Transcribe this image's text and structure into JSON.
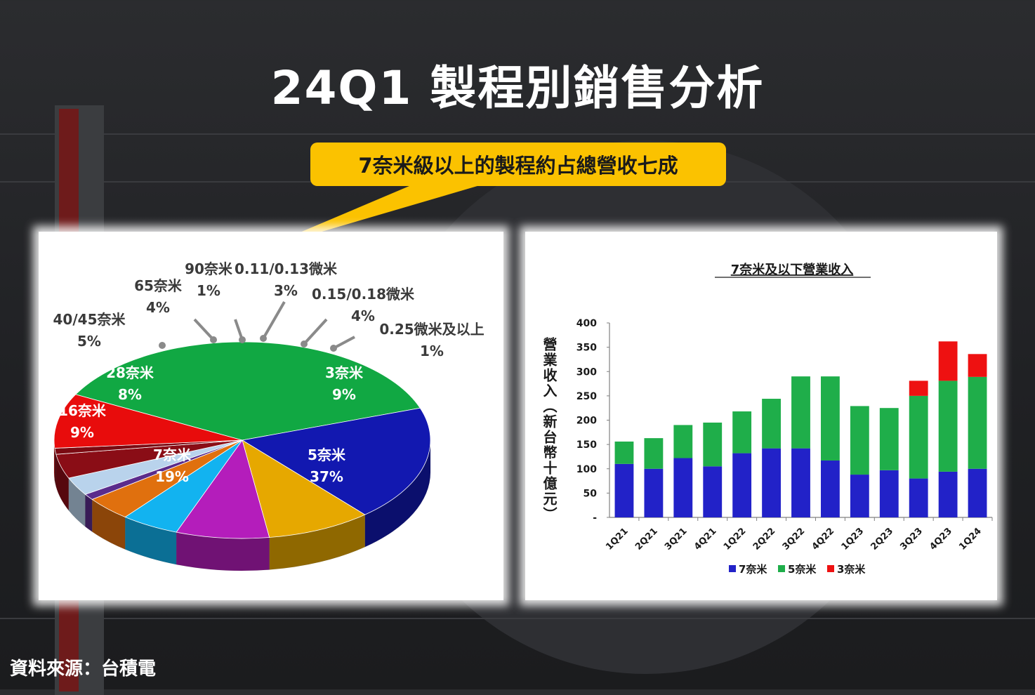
{
  "title": "24Q1 製程別銷售分析",
  "callout": "7奈米級以上的製程約占總營收七成",
  "source": "資料來源：台積電",
  "chart_data": [
    {
      "type": "pie",
      "slices": [
        {
          "name": "5奈米",
          "percent": "37%",
          "value": 37,
          "color": "#11a843"
        },
        {
          "name": "7奈米",
          "percent": "19%",
          "value": 19,
          "color": "#1218b0"
        },
        {
          "name": "16奈米",
          "percent": "9%",
          "value": 9,
          "color": "#e6a800"
        },
        {
          "name": "28奈米",
          "percent": "8%",
          "value": 8,
          "color": "#b41dbb"
        },
        {
          "name": "40/45奈米",
          "percent": "5%",
          "value": 5,
          "color": "#12b3f0"
        },
        {
          "name": "65奈米",
          "percent": "4%",
          "value": 4,
          "color": "#e0700e"
        },
        {
          "name": "90奈米",
          "percent": "1%",
          "value": 1,
          "color": "#5a2c8c"
        },
        {
          "name": "0.11/0.13微米",
          "percent": "3%",
          "value": 3,
          "color": "#b9d3ec"
        },
        {
          "name": "0.15/0.18微米",
          "percent": "4%",
          "value": 4,
          "color": "#8a0d16"
        },
        {
          "name": "0.25微米及以上",
          "percent": "1%",
          "value": 1,
          "color": "#7a0a12"
        },
        {
          "name": "3奈米",
          "percent": "9%",
          "value": 9,
          "color": "#e80c0c"
        }
      ]
    },
    {
      "type": "bar",
      "stacked": true,
      "title": "7奈米及以下營業收入",
      "ylabel": "營業收入（新台幣十億元）",
      "ylim": [
        0,
        400
      ],
      "yticks": [
        "-",
        "50",
        "100",
        "150",
        "200",
        "250",
        "300",
        "350",
        "400"
      ],
      "categories": [
        "1Q21",
        "2Q21",
        "3Q21",
        "4Q21",
        "1Q22",
        "2Q22",
        "3Q22",
        "4Q22",
        "1Q23",
        "2Q23",
        "3Q23",
        "4Q23",
        "1Q24"
      ],
      "series": [
        {
          "name": "7奈米",
          "color": "#2222c8",
          "values": [
            110,
            100,
            122,
            105,
            132,
            142,
            142,
            117,
            88,
            97,
            80,
            94,
            100
          ]
        },
        {
          "name": "5奈米",
          "color": "#1fae4a",
          "values": [
            46,
            63,
            68,
            90,
            86,
            102,
            148,
            173,
            141,
            128,
            170,
            187,
            189
          ]
        },
        {
          "name": "3奈米",
          "color": "#ee1111",
          "values": [
            0,
            0,
            0,
            0,
            0,
            0,
            0,
            0,
            0,
            0,
            31,
            81,
            47
          ]
        }
      ]
    }
  ]
}
